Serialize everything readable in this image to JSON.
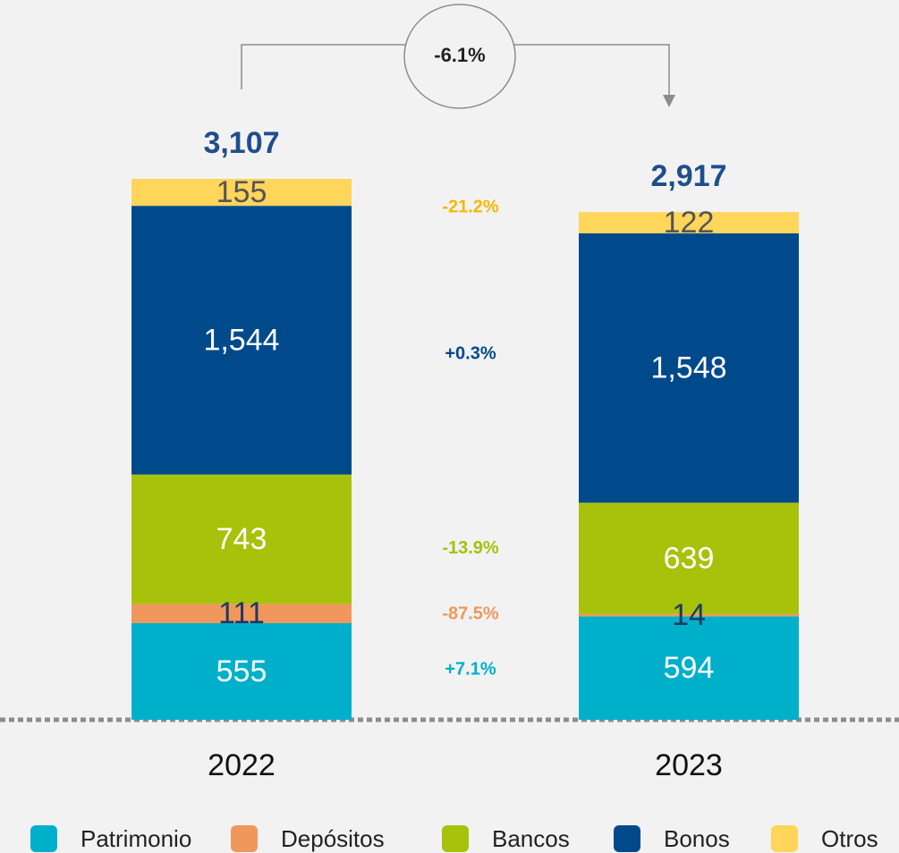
{
  "chart_data": {
    "type": "stacked-bar",
    "categories": [
      "2022",
      "2023"
    ],
    "series": [
      {
        "name": "Patrimonio",
        "color": "#00b0ca",
        "label_color": "#ffffff",
        "change_color": "#00b0ca",
        "values": [
          555,
          594
        ],
        "value_labels": [
          "555",
          "594"
        ],
        "change": 7.1,
        "change_label": "+7.1%"
      },
      {
        "name": "Depósitos",
        "color": "#f0975b",
        "label_color": "#1f3864",
        "change_color": "#f0975b",
        "values": [
          111,
          14
        ],
        "value_labels": [
          "111",
          "14"
        ],
        "change": -87.5,
        "change_label": "-87.5%"
      },
      {
        "name": "Bancos",
        "color": "#a6c20a",
        "label_color": "#ffffff",
        "change_color": "#a6c20a",
        "values": [
          743,
          639
        ],
        "value_labels": [
          "743",
          "639"
        ],
        "change": -13.9,
        "change_label": "-13.9%"
      },
      {
        "name": "Bonos",
        "color": "#004a8c",
        "label_color": "#ffffff",
        "change_color": "#004a8c",
        "values": [
          1544,
          1548
        ],
        "value_labels": [
          "1,544",
          "1,548"
        ],
        "change": 0.3,
        "change_label": "+0.3%"
      },
      {
        "name": "Otros",
        "color": "#ffd55a",
        "label_color": "#555555",
        "change_color": "#f5b800",
        "values": [
          155,
          122
        ],
        "value_labels": [
          "155",
          "122"
        ],
        "change": -21.2,
        "change_label": "-21.2%"
      }
    ],
    "totals": [
      3107,
      2917
    ],
    "total_labels": [
      "3,107",
      "2,917"
    ],
    "total_color": "#1f4e8c",
    "total_change": -6.1,
    "total_change_label": "-6.1%"
  }
}
